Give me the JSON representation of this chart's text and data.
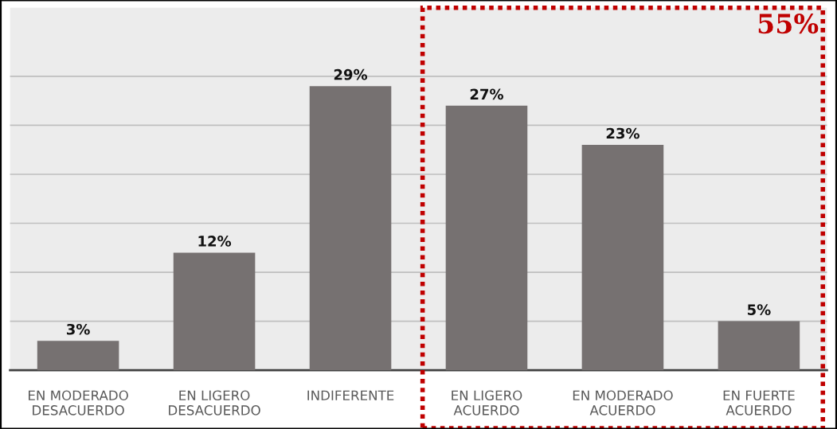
{
  "chart_data": {
    "type": "bar",
    "categories": [
      "EN MODERADO\nDESACUERDO",
      "EN LIGERO\nDESACUERDO",
      "INDIFERENTE",
      "EN LIGERO\nACUERDO",
      "EN MODERADO\nACUERDO",
      "EN FUERTE\nACUERDO"
    ],
    "values": [
      3,
      12,
      29,
      27,
      23,
      5
    ],
    "value_labels": [
      "3%",
      "12%",
      "29%",
      "27%",
      "23%",
      "5%"
    ],
    "color": "#767171",
    "ylim": [
      0,
      37
    ],
    "yticks": [
      {
        "value": 0,
        "label": null
      },
      {
        "value": 5,
        "label": null
      },
      {
        "value": 10,
        "label": null
      },
      {
        "value": 15,
        "label": null
      },
      {
        "value": 20,
        "label": null
      },
      {
        "value": 25,
        "label": null
      },
      {
        "value": 30,
        "label": null
      }
    ],
    "tick_labels": "x",
    "grid": "y",
    "annotations": [
      "55%"
    ]
  }
}
